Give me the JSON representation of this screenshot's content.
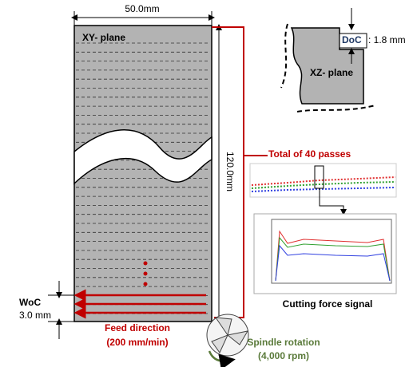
{
  "workpiece": {
    "width_label": "50.0mm",
    "length_label": "120.0mm",
    "plane_label": "XY- plane"
  },
  "cross_section": {
    "doc_label": "DoC",
    "doc_value": ": 1.8 mm",
    "plane_label": "XZ- plane"
  },
  "passes_label": "Total of 40 passes",
  "woc": {
    "label": "WoC",
    "value": "3.0 mm"
  },
  "feed": {
    "label": "Feed direction",
    "value": "(200 mm/min)"
  },
  "spindle": {
    "label": "Spindle rotation",
    "value": "(4,000 rpm)"
  },
  "signal_caption": "Cutting force signal"
}
